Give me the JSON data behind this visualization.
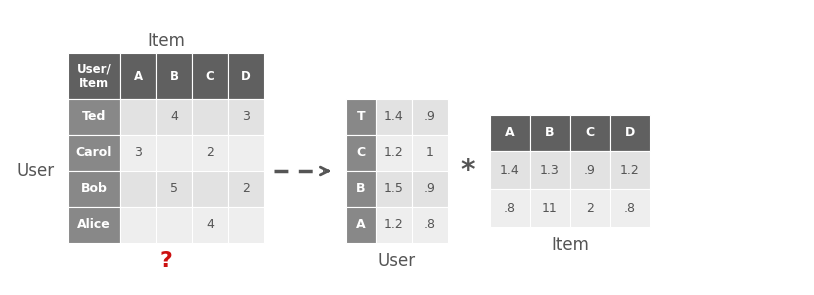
{
  "bg_color": "#ffffff",
  "dark_header": "#606060",
  "row_label_color": "#888888",
  "light_cell1": "#e2e2e2",
  "light_cell2": "#eeeeee",
  "header_text_color": "#ffffff",
  "cell_text_color": "#555555",
  "question_color": "#cc1111",
  "arrow_color": "#555555",
  "main_table": {
    "header_row": [
      "User/\nItem",
      "A",
      "B",
      "C",
      "D"
    ],
    "rows": [
      [
        "Ted",
        "",
        "4",
        "",
        "3"
      ],
      [
        "Carol",
        "3",
        "",
        "2",
        ""
      ],
      [
        "Bob",
        "",
        "5",
        "",
        "2"
      ],
      [
        "Alice",
        "",
        "",
        "4",
        ""
      ]
    ],
    "title": "Item",
    "ylabel": "User"
  },
  "user_matrix": {
    "rows": [
      [
        "T",
        "1.4",
        ".9"
      ],
      [
        "C",
        "1.2",
        "1"
      ],
      [
        "B",
        "1.5",
        ".9"
      ],
      [
        "A",
        "1.2",
        ".8"
      ]
    ],
    "label": "User"
  },
  "item_matrix": {
    "col_header": [
      "A",
      "B",
      "C",
      "D"
    ],
    "rows": [
      [
        "1.4",
        "1.3",
        ".9",
        "1.2"
      ],
      [
        ".8",
        "11",
        "2",
        ".8"
      ]
    ],
    "label": "Item"
  }
}
